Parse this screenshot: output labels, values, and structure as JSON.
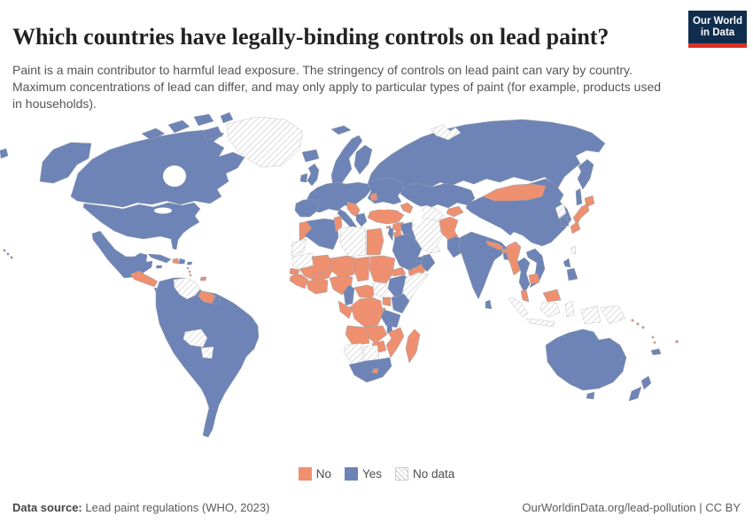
{
  "header": {
    "title": "Which countries have legally-binding controls on lead paint?",
    "subtitle": "Paint is a main contributor to harmful lead exposure. The stringency of controls on lead paint can vary by country. Maximum concentrations of lead can differ, and may only apply to particular types of paint (for example, products used in households)."
  },
  "logo": {
    "line1": "Our World",
    "line2": "in Data",
    "bg": "#102d4e",
    "accent": "#d93025"
  },
  "legend": [
    {
      "key": "no",
      "label": "No",
      "color": "#ee9070"
    },
    {
      "key": "yes",
      "label": "Yes",
      "color": "#6e84b6"
    },
    {
      "key": "nodata",
      "label": "No data",
      "pattern": "hatch"
    }
  ],
  "colors": {
    "yes": "#6e84b6",
    "no": "#ee9070",
    "border": "#97a0ad",
    "hatch_line": "#cbcbcb",
    "hatch_border": "#c2c2c2",
    "ocean": "#ffffff"
  },
  "footer": {
    "source_label": "Data source:",
    "source_value": " Lead paint regulations (WHO, 2023)",
    "right": "OurWorldinData.org/lead-pollution | CC BY"
  },
  "chart_data": {
    "type": "choropleth-map",
    "title": "Which countries have legally-binding controls on lead paint?",
    "legend_entries": [
      "No",
      "Yes",
      "No data"
    ],
    "legend_position": "bottom-center",
    "regions": {
      "alaska": "yes",
      "canada": "yes",
      "canada-arctic": "yes",
      "greenland": "nodata",
      "iceland": "yes",
      "usa": "yes",
      "hawaii": "yes",
      "chukotka-sliver": "yes",
      "mexico": "yes",
      "central-america": "no",
      "costa-rica-panama": "yes",
      "cuba": "yes",
      "haiti": "no",
      "dominican-republic": "yes",
      "jamaica": "yes",
      "puerto-rico": "yes",
      "lesser-antilles": "no",
      "trinidad": "no",
      "south-america": "yes",
      "venezuela": "nodata",
      "guyanas": "no",
      "french-guiana": "yes",
      "bolivia": "nodata",
      "paraguay": "nodata",
      "uk": "yes",
      "ireland": "yes",
      "scandinavia": "yes",
      "finland": "yes",
      "denmark": "yes",
      "europe-west": "yes",
      "iberia": "yes",
      "italy": "yes",
      "balkans": "no",
      "greece": "yes",
      "europe-east": "yes",
      "moldova": "no",
      "russia": "yes",
      "svalbard": "yes",
      "novaya-zemlya": "nodata",
      "kazakhstan": "yes",
      "uzbekistan-turkmenistan": "nodata",
      "kyrgyzstan-tajikistan": "no",
      "caucasus": "no",
      "turkey": "no",
      "cyprus": "no",
      "syria": "no",
      "israel-lebanon": "yes",
      "jordan": "no",
      "iraq": "yes",
      "iran": "nodata",
      "afghanistan": "no",
      "pakistan": "yes",
      "saudi-arabia": "yes",
      "yemen": "no",
      "oman": "yes",
      "uae": "yes",
      "morocco": "no",
      "western-sahara": "nodata",
      "algeria": "yes",
      "tunisia": "no",
      "libya": "nodata",
      "egypt": "no",
      "mauritania": "nodata",
      "mali": "no",
      "niger": "no",
      "chad": "no",
      "sudan": "no",
      "senegal": "no",
      "guinea": "no",
      "burkina-faso": "no",
      "ivory-coast-ghana": "no",
      "nigeria": "no",
      "cameroon": "yes",
      "gabon-congo": "no",
      "central-african-republic": "no",
      "south-sudan": "nodata",
      "ethiopia": "yes",
      "eritrea": "no",
      "somalia": "nodata",
      "kenya": "yes",
      "uganda": "no",
      "rwanda-burundi": "no",
      "drc": "no",
      "tanzania": "yes",
      "angola": "no",
      "zambia": "no",
      "malawi": "yes",
      "mozambique": "no",
      "zimbabwe": "no",
      "namibia": "nodata",
      "botswana": "nodata",
      "south-africa": "yes",
      "lesotho": "no",
      "madagascar": "no",
      "china": "yes",
      "mongolia": "no",
      "north-korea": "nodata",
      "south-korea": "yes",
      "japan": "no",
      "taiwan": "nodata",
      "india": "yes",
      "nepal": "no",
      "bhutan": "no",
      "bangladesh": "yes",
      "sri-lanka": "yes",
      "myanmar": "no",
      "thailand": "yes",
      "laos-vietnam": "yes",
      "cambodia": "no",
      "malaysia": "no",
      "philippines": "yes",
      "indonesia": "nodata",
      "papua-new-guinea": "nodata",
      "solomon-islands": "no",
      "vanuatu": "no",
      "fiji": "no",
      "new-caledonia": "yes",
      "australia": "yes",
      "tasmania": "yes",
      "new-zealand": "yes"
    }
  }
}
